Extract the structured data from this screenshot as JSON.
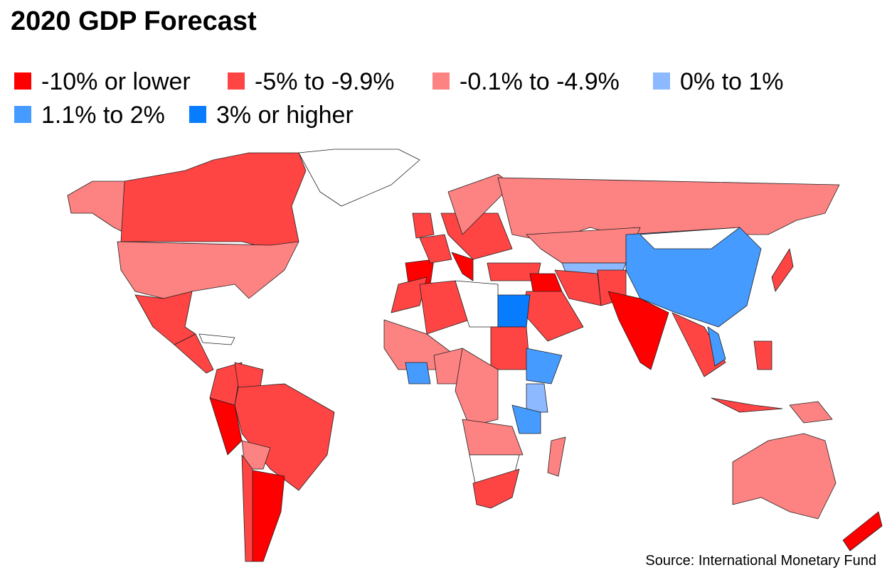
{
  "title": "2020 GDP Forecast",
  "legend": [
    {
      "label": "-10% or lower",
      "color": "#ff0000"
    },
    {
      "label": "-5% to -9.9%",
      "color": "#ff4444"
    },
    {
      "label": "-0.1% to -4.9%",
      "color": "#fd8282"
    },
    {
      "label": "0% to 1%",
      "color": "#8cb9ff"
    },
    {
      "label": "1.1% to 2%",
      "color": "#459bff"
    },
    {
      "label": "3% or higher",
      "color": "#087cff"
    }
  ],
  "source": "Source: International Monetary Fund"
}
